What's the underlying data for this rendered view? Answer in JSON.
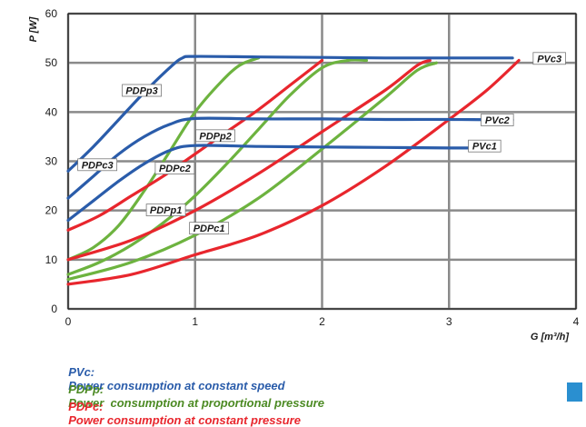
{
  "chart_data": {
    "type": "line",
    "title": "",
    "xlabel": "G [m³/h]",
    "ylabel": "P [W]",
    "xlim": [
      0,
      4
    ],
    "ylim": [
      0,
      60
    ],
    "xticks": [
      0,
      1,
      2,
      3,
      4
    ],
    "yticks": [
      0,
      10,
      20,
      30,
      40,
      50,
      60
    ],
    "grid": true,
    "colors": {
      "PVc": "#2a5caa",
      "PDPp": "#6db33f",
      "PDPc": "#e8262d"
    },
    "series": [
      {
        "name": "PVc3",
        "group": "PVc",
        "x": [
          0,
          0.2,
          0.4,
          0.6,
          0.8,
          0.9,
          1.0,
          1.5,
          2.0,
          2.5,
          3.0,
          3.5
        ],
        "y": [
          28,
          33,
          38.5,
          44,
          49,
          51,
          51.3,
          51.2,
          51.1,
          51,
          51,
          51
        ]
      },
      {
        "name": "PVc2",
        "group": "PVc",
        "x": [
          0,
          0.2,
          0.4,
          0.6,
          0.8,
          1.0,
          1.5,
          2.0,
          2.5,
          3.0,
          3.5
        ],
        "y": [
          22.5,
          27,
          31.5,
          35,
          37.5,
          38.7,
          38.6,
          38.6,
          38.5,
          38.5,
          38.4
        ]
      },
      {
        "name": "PVc1",
        "group": "PVc",
        "x": [
          0,
          0.2,
          0.4,
          0.6,
          0.8,
          1.0,
          1.5,
          2.0,
          2.5,
          3.0,
          3.3
        ],
        "y": [
          18,
          22,
          26,
          29.5,
          32.2,
          33.2,
          33,
          32.9,
          32.8,
          32.7,
          32.7
        ]
      },
      {
        "name": "PDPp3",
        "group": "PDPp",
        "x": [
          0,
          0.2,
          0.4,
          0.6,
          0.8,
          1.0,
          1.2,
          1.35,
          1.5
        ],
        "y": [
          10,
          12.5,
          17,
          24,
          32,
          40,
          46,
          49.5,
          51
        ]
      },
      {
        "name": "PDPp2",
        "group": "PDPp",
        "x": [
          0,
          0.25,
          0.5,
          0.75,
          1.0,
          1.25,
          1.5,
          1.75,
          2.0,
          2.2,
          2.35
        ],
        "y": [
          7,
          9.5,
          13,
          17.5,
          23,
          29.5,
          36.5,
          43.5,
          49,
          50.5,
          50.5
        ]
      },
      {
        "name": "PDPp1",
        "group": "PDPp",
        "x": [
          0,
          0.5,
          1.0,
          1.5,
          2.0,
          2.5,
          2.75,
          2.9
        ],
        "y": [
          6,
          9.5,
          15,
          22.5,
          32.5,
          43,
          48.5,
          50
        ]
      },
      {
        "name": "PDPc3",
        "group": "PDPc",
        "x": [
          0,
          0.25,
          0.5,
          0.75,
          1.0,
          1.25,
          1.5,
          1.75,
          2.0
        ],
        "y": [
          16,
          19,
          23,
          27,
          31.5,
          36,
          40.5,
          45.5,
          50.5
        ]
      },
      {
        "name": "PDPc2",
        "group": "PDPc",
        "x": [
          0,
          0.5,
          1.0,
          1.5,
          2.0,
          2.5,
          2.75,
          2.85
        ],
        "y": [
          10,
          14,
          20,
          27.5,
          36,
          44.5,
          49.5,
          50.5
        ]
      },
      {
        "name": "PDPc1",
        "group": "PDPc",
        "x": [
          0,
          0.5,
          1.0,
          1.5,
          2.0,
          2.5,
          3.0,
          3.3,
          3.55
        ],
        "y": [
          5,
          7,
          11,
          15,
          21,
          29,
          38.5,
          44.5,
          50.5
        ]
      }
    ],
    "labels": [
      {
        "text": "PVc3",
        "x": 3.79,
        "y": 50.9
      },
      {
        "text": "PVc2",
        "x": 3.38,
        "y": 38.4
      },
      {
        "text": "PVc1",
        "x": 3.28,
        "y": 33.1
      },
      {
        "text": "PDPp3",
        "x": 0.58,
        "y": 44.4
      },
      {
        "text": "PDPp2",
        "x": 1.16,
        "y": 35.2
      },
      {
        "text": "PDPc3",
        "x": 0.23,
        "y": 29.3
      },
      {
        "text": "PDPc2",
        "x": 0.84,
        "y": 28.6
      },
      {
        "text": "PDPp1",
        "x": 0.77,
        "y": 20.1
      },
      {
        "text": "PDPc1",
        "x": 1.11,
        "y": 16.4
      }
    ]
  },
  "legend": [
    {
      "code": "PVc:",
      "text": "Power consumption at constant speed",
      "color": "#2a5caa"
    },
    {
      "code": "PDPp:",
      "text": "Power  consumption at proportional pressure",
      "color": "#4c8a23"
    },
    {
      "code": "PDPc:",
      "text": "Power consumption at constant pressure",
      "color": "#e8262d"
    }
  ],
  "corner_square_color": "#2a8fd0"
}
